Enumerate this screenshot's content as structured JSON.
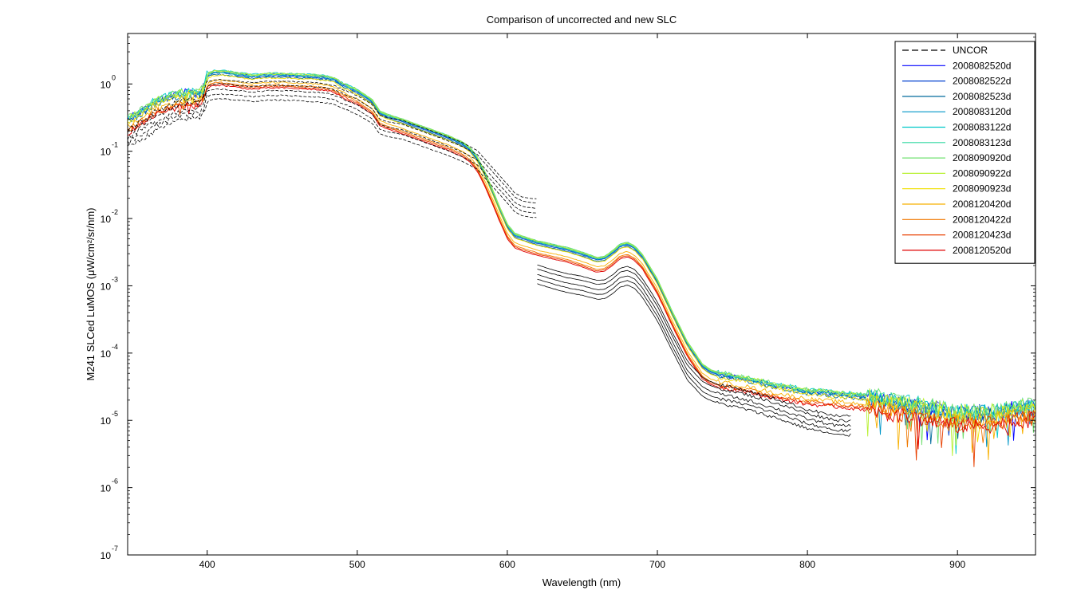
{
  "chart_data": {
    "type": "line",
    "title": "Comparison of uncorrected and new SLC",
    "xlabel": "Wavelength (nm)",
    "ylabel": "M241 SLCed LuMOS (μW/cm²/sr/nm)",
    "xlim": [
      347,
      952
    ],
    "ylim_exp": [
      -7,
      0.75
    ],
    "yscale": "log",
    "grid": false,
    "legend_position": "top-right",
    "x_ticks": [
      400,
      500,
      600,
      700,
      800,
      900
    ],
    "y_tick_base": "10",
    "y_tick_exps": [
      "0",
      "-1",
      "-2",
      "-3",
      "-4",
      "-5",
      "-6",
      "-7"
    ],
    "profile_log10": {
      "x": [
        347,
        355,
        365,
        375,
        385,
        395,
        398,
        400,
        405,
        410,
        420,
        430,
        440,
        450,
        460,
        470,
        480,
        485,
        490,
        500,
        510,
        515,
        520,
        530,
        540,
        550,
        560,
        570,
        575,
        580,
        585,
        590,
        595,
        600,
        605,
        610,
        620,
        630,
        640,
        650,
        660,
        665,
        670,
        675,
        680,
        685,
        690,
        700,
        710,
        720,
        730,
        735,
        740,
        760,
        780,
        800,
        820,
        840,
        860,
        880,
        900,
        920,
        940,
        952
      ],
      "y": [
        -0.62,
        -0.52,
        -0.36,
        -0.28,
        -0.22,
        -0.22,
        -0.12,
        0.04,
        0.08,
        0.08,
        0.05,
        0.02,
        0.04,
        0.04,
        0.03,
        0.02,
        0.0,
        -0.03,
        -0.1,
        -0.2,
        -0.35,
        -0.52,
        -0.57,
        -0.64,
        -0.72,
        -0.8,
        -0.88,
        -0.98,
        -1.06,
        -1.2,
        -1.42,
        -1.68,
        -1.95,
        -2.2,
        -2.34,
        -2.38,
        -2.45,
        -2.5,
        -2.55,
        -2.62,
        -2.7,
        -2.68,
        -2.6,
        -2.5,
        -2.47,
        -2.53,
        -2.65,
        -3.02,
        -3.5,
        -3.95,
        -4.28,
        -4.36,
        -4.4,
        -4.48,
        -4.58,
        -4.66,
        -4.7,
        -4.74,
        -4.82,
        -4.9,
        -4.98,
        -4.98,
        -4.92,
        -4.88
      ]
    },
    "uncor_profile_log10": {
      "x": [
        347,
        355,
        365,
        375,
        385,
        395,
        398,
        400,
        405,
        410,
        420,
        430,
        440,
        450,
        460,
        470,
        480,
        485,
        490,
        500,
        510,
        515,
        520,
        530,
        540,
        550,
        560,
        570,
        580,
        590,
        600,
        605,
        610,
        615,
        620
      ],
      "y": [
        -0.72,
        -0.62,
        -0.48,
        -0.38,
        -0.3,
        -0.28,
        -0.2,
        -0.03,
        0.0,
        0.0,
        -0.02,
        -0.04,
        -0.02,
        -0.02,
        -0.03,
        -0.04,
        -0.06,
        -0.09,
        -0.14,
        -0.23,
        -0.37,
        -0.52,
        -0.56,
        -0.6,
        -0.68,
        -0.76,
        -0.84,
        -0.93,
        -1.05,
        -1.3,
        -1.55,
        -1.68,
        -1.74,
        -1.76,
        -1.77
      ]
    },
    "uncor_profile_2_log10": {
      "x": [
        620,
        630,
        640,
        650,
        660,
        665,
        670,
        675,
        680,
        685,
        690,
        700,
        710,
        720,
        730,
        735,
        740,
        760,
        780,
        800,
        820,
        830
      ],
      "y": [
        -2.75,
        -2.82,
        -2.88,
        -2.92,
        -2.98,
        -2.97,
        -2.9,
        -2.8,
        -2.77,
        -2.82,
        -2.95,
        -3.3,
        -3.75,
        -4.18,
        -4.42,
        -4.48,
        -4.52,
        -4.62,
        -4.75,
        -4.9,
        -5.0,
        -5.0
      ]
    },
    "series": [
      {
        "name": "UNCOR",
        "color": "#000000",
        "dash": true,
        "offsets_log10": [
          0.0,
          -0.08,
          -0.15,
          -0.22,
          0.06
        ]
      },
      {
        "name": "2008082520d",
        "color": "#0000ff",
        "offset_log10": 0.1
      },
      {
        "name": "2008082522d",
        "color": "#0040d0",
        "offset_log10": 0.08
      },
      {
        "name": "2008082523d",
        "color": "#006a9c",
        "offset_log10": 0.06
      },
      {
        "name": "2008083120d",
        "color": "#0096c8",
        "offset_log10": 0.09
      },
      {
        "name": "2008083122d",
        "color": "#00c8c8",
        "offset_log10": 0.12
      },
      {
        "name": "2008083123d",
        "color": "#30d8a0",
        "offset_log10": 0.1
      },
      {
        "name": "2008090920d",
        "color": "#70e070",
        "offset_log10": 0.12
      },
      {
        "name": "2008090922d",
        "color": "#b8f030",
        "offset_log10": 0.11
      },
      {
        "name": "2008090923d",
        "color": "#f0e000",
        "offset_log10": 0.05
      },
      {
        "name": "2008120420d",
        "color": "#f8b000",
        "offset_log10": -0.02
      },
      {
        "name": "2008120422d",
        "color": "#f07800",
        "offset_log10": -0.06
      },
      {
        "name": "2008120423d",
        "color": "#e84000",
        "offset_log10": -0.08
      },
      {
        "name": "2008120520d",
        "color": "#e00000",
        "offset_log10": -0.1
      }
    ]
  }
}
